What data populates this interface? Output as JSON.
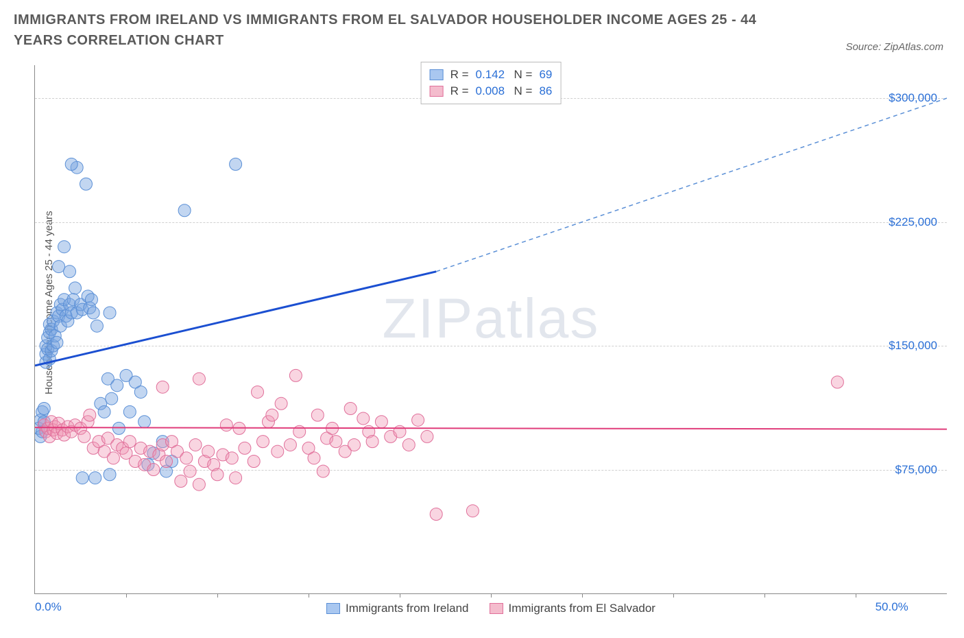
{
  "title": "IMMIGRANTS FROM IRELAND VS IMMIGRANTS FROM EL SALVADOR HOUSEHOLDER INCOME AGES 25 - 44 YEARS CORRELATION CHART",
  "source": "Source: ZipAtlas.com",
  "watermark_a": "ZIP",
  "watermark_b": "atlas",
  "chart": {
    "type": "scatter",
    "ylabel": "Householder Income Ages 25 - 44 years",
    "xlim": [
      0,
      50
    ],
    "ylim": [
      0,
      320000
    ],
    "yticks": [
      75000,
      150000,
      225000,
      300000
    ],
    "ytick_labels": [
      "$75,000",
      "$150,000",
      "$225,000",
      "$300,000"
    ],
    "xticks_major": [
      0,
      50
    ],
    "xtick_labels": [
      "0.0%",
      "50.0%"
    ],
    "xticks_minor": [
      5,
      10,
      15,
      20,
      25,
      30,
      35,
      40,
      45
    ],
    "grid_color": "#d0d0d0",
    "axis_color": "#888888",
    "label_color": "#2a6fd6",
    "legend_top": {
      "rows": [
        {
          "swatch_fill": "#a9c7f0",
          "swatch_border": "#5a8fd6",
          "r_label": "R =",
          "r": "0.142",
          "n_label": "N =",
          "n": "69"
        },
        {
          "swatch_fill": "#f4bccd",
          "swatch_border": "#e06f9a",
          "r_label": "R =",
          "r": "0.008",
          "n_label": "N =",
          "n": "86"
        }
      ]
    },
    "legend_bottom": [
      {
        "swatch_fill": "#a9c7f0",
        "swatch_border": "#5a8fd6",
        "label": "Immigrants from Ireland"
      },
      {
        "swatch_fill": "#f4bccd",
        "swatch_border": "#e06f9a",
        "label": "Immigrants from El Salvador"
      }
    ],
    "series": [
      {
        "name": "ireland",
        "marker_fill": "rgba(120,165,225,0.45)",
        "marker_stroke": "#5a8fd6",
        "marker_r": 9,
        "trend": {
          "x1": 0,
          "y1": 138000,
          "x2": 22,
          "y2": 195000,
          "stroke": "#1b4fd1",
          "width": 3
        },
        "trend_ext": {
          "x1": 22,
          "y1": 195000,
          "x2": 50,
          "y2": 300000,
          "stroke": "#5a8fd6",
          "width": 1.5,
          "dash": "6,5"
        },
        "points": [
          [
            0.2,
            100000
          ],
          [
            0.3,
            95000
          ],
          [
            0.3,
            105000
          ],
          [
            0.4,
            98000
          ],
          [
            0.4,
            110000
          ],
          [
            0.5,
            104000
          ],
          [
            0.5,
            112000
          ],
          [
            0.6,
            140000
          ],
          [
            0.6,
            145000
          ],
          [
            0.6,
            150000
          ],
          [
            0.7,
            148000
          ],
          [
            0.7,
            155000
          ],
          [
            0.8,
            142000
          ],
          [
            0.8,
            158000
          ],
          [
            0.8,
            163000
          ],
          [
            0.9,
            147000
          ],
          [
            0.9,
            160000
          ],
          [
            1.0,
            150000
          ],
          [
            1.0,
            165000
          ],
          [
            1.1,
            156000
          ],
          [
            1.2,
            152000
          ],
          [
            1.2,
            170000
          ],
          [
            1.3,
            168000
          ],
          [
            1.3,
            198000
          ],
          [
            1.4,
            162000
          ],
          [
            1.4,
            175000
          ],
          [
            1.5,
            172000
          ],
          [
            1.6,
            178000
          ],
          [
            1.6,
            210000
          ],
          [
            1.7,
            168000
          ],
          [
            1.8,
            165000
          ],
          [
            1.9,
            175000
          ],
          [
            1.9,
            195000
          ],
          [
            2.0,
            170000
          ],
          [
            2.1,
            178000
          ],
          [
            2.2,
            185000
          ],
          [
            2.3,
            170000
          ],
          [
            2.3,
            258000
          ],
          [
            2.5,
            175000
          ],
          [
            2.6,
            172000
          ],
          [
            2.8,
            248000
          ],
          [
            2.9,
            180000
          ],
          [
            3.0,
            173000
          ],
          [
            3.1,
            178000
          ],
          [
            3.2,
            170000
          ],
          [
            3.4,
            162000
          ],
          [
            3.6,
            115000
          ],
          [
            3.8,
            110000
          ],
          [
            4.0,
            130000
          ],
          [
            4.1,
            170000
          ],
          [
            4.2,
            118000
          ],
          [
            4.5,
            126000
          ],
          [
            4.6,
            100000
          ],
          [
            5.0,
            132000
          ],
          [
            5.2,
            110000
          ],
          [
            5.5,
            128000
          ],
          [
            5.8,
            122000
          ],
          [
            6.0,
            104000
          ],
          [
            6.2,
            78000
          ],
          [
            6.5,
            85000
          ],
          [
            7.0,
            92000
          ],
          [
            7.2,
            74000
          ],
          [
            7.5,
            80000
          ],
          [
            4.1,
            72000
          ],
          [
            3.3,
            70000
          ],
          [
            2.6,
            70000
          ],
          [
            8.2,
            232000
          ],
          [
            11.0,
            260000
          ],
          [
            2.0,
            260000
          ]
        ]
      },
      {
        "name": "elsalvador",
        "marker_fill": "rgba(240,150,180,0.40)",
        "marker_stroke": "#e06f9a",
        "marker_r": 9,
        "trend": {
          "x1": 0,
          "y1": 100500,
          "x2": 50,
          "y2": 99500,
          "stroke": "#e03c7a",
          "width": 2
        },
        "points": [
          [
            0.5,
            102000
          ],
          [
            0.6,
            98000
          ],
          [
            0.7,
            100000
          ],
          [
            0.8,
            95000
          ],
          [
            0.9,
            104000
          ],
          [
            1.0,
            99000
          ],
          [
            1.1,
            101000
          ],
          [
            1.2,
            97000
          ],
          [
            1.3,
            103000
          ],
          [
            1.5,
            99000
          ],
          [
            1.6,
            96000
          ],
          [
            1.8,
            101000
          ],
          [
            2.0,
            98000
          ],
          [
            2.2,
            102000
          ],
          [
            2.5,
            100000
          ],
          [
            2.7,
            95000
          ],
          [
            2.9,
            104000
          ],
          [
            3.0,
            108000
          ],
          [
            3.2,
            88000
          ],
          [
            3.5,
            92000
          ],
          [
            3.8,
            86000
          ],
          [
            4.0,
            94000
          ],
          [
            4.3,
            82000
          ],
          [
            4.5,
            90000
          ],
          [
            4.8,
            88000
          ],
          [
            5.0,
            85000
          ],
          [
            5.2,
            92000
          ],
          [
            5.5,
            80000
          ],
          [
            5.8,
            88000
          ],
          [
            6.0,
            78000
          ],
          [
            6.3,
            86000
          ],
          [
            6.5,
            75000
          ],
          [
            6.8,
            84000
          ],
          [
            7.0,
            90000
          ],
          [
            7.2,
            80000
          ],
          [
            7.5,
            92000
          ],
          [
            7.8,
            86000
          ],
          [
            8.0,
            68000
          ],
          [
            8.3,
            82000
          ],
          [
            8.5,
            74000
          ],
          [
            8.8,
            90000
          ],
          [
            9.0,
            66000
          ],
          [
            9.3,
            80000
          ],
          [
            9.5,
            86000
          ],
          [
            9.8,
            78000
          ],
          [
            10.0,
            72000
          ],
          [
            10.3,
            84000
          ],
          [
            10.5,
            102000
          ],
          [
            10.8,
            82000
          ],
          [
            11.0,
            70000
          ],
          [
            11.2,
            100000
          ],
          [
            11.5,
            88000
          ],
          [
            12.0,
            80000
          ],
          [
            12.2,
            122000
          ],
          [
            12.5,
            92000
          ],
          [
            12.8,
            104000
          ],
          [
            13.0,
            108000
          ],
          [
            13.3,
            86000
          ],
          [
            13.5,
            115000
          ],
          [
            14.0,
            90000
          ],
          [
            14.3,
            132000
          ],
          [
            14.5,
            98000
          ],
          [
            15.0,
            88000
          ],
          [
            15.3,
            82000
          ],
          [
            15.5,
            108000
          ],
          [
            15.8,
            74000
          ],
          [
            16.0,
            94000
          ],
          [
            16.3,
            100000
          ],
          [
            16.5,
            92000
          ],
          [
            17.0,
            86000
          ],
          [
            17.3,
            112000
          ],
          [
            17.5,
            90000
          ],
          [
            18.0,
            106000
          ],
          [
            18.3,
            98000
          ],
          [
            18.5,
            92000
          ],
          [
            19.0,
            104000
          ],
          [
            19.5,
            95000
          ],
          [
            20.0,
            98000
          ],
          [
            20.5,
            90000
          ],
          [
            21.0,
            105000
          ],
          [
            21.5,
            95000
          ],
          [
            22.0,
            48000
          ],
          [
            24.0,
            50000
          ],
          [
            44.0,
            128000
          ],
          [
            9.0,
            130000
          ],
          [
            7.0,
            125000
          ]
        ]
      }
    ]
  }
}
